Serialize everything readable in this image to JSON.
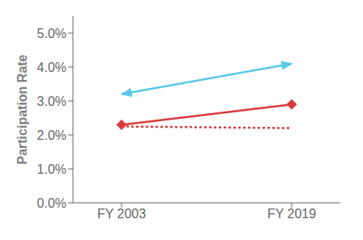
{
  "chart_data": {
    "type": "line",
    "categories": [
      "FY 2003",
      "FY 2019"
    ],
    "series": [
      {
        "color": "#5BC8E8",
        "values": [
          0.032,
          0.041
        ],
        "line_style": "solid",
        "marker": "arrow"
      },
      {
        "color": "#D93B3B",
        "values": [
          0.023,
          0.029
        ],
        "line_style": "solid",
        "marker": "diamond"
      },
      {
        "color": "#D93B3B",
        "values": [
          0.0225,
          0.022
        ],
        "line_style": "dotted",
        "marker": "none"
      }
    ],
    "ylim": [
      0,
      0.055
    ],
    "yticks": [
      {
        "value": 0,
        "label": "0.0%"
      },
      {
        "value": 0.01,
        "label": "1.0%"
      },
      {
        "value": 0.02,
        "label": "2.0%"
      },
      {
        "value": 0.03,
        "label": "3.0%"
      },
      {
        "value": 0.04,
        "label": "4.0%"
      },
      {
        "value": 0.05,
        "label": "5.0%"
      }
    ],
    "y_label": "Participation Rate",
    "grid": false
  }
}
